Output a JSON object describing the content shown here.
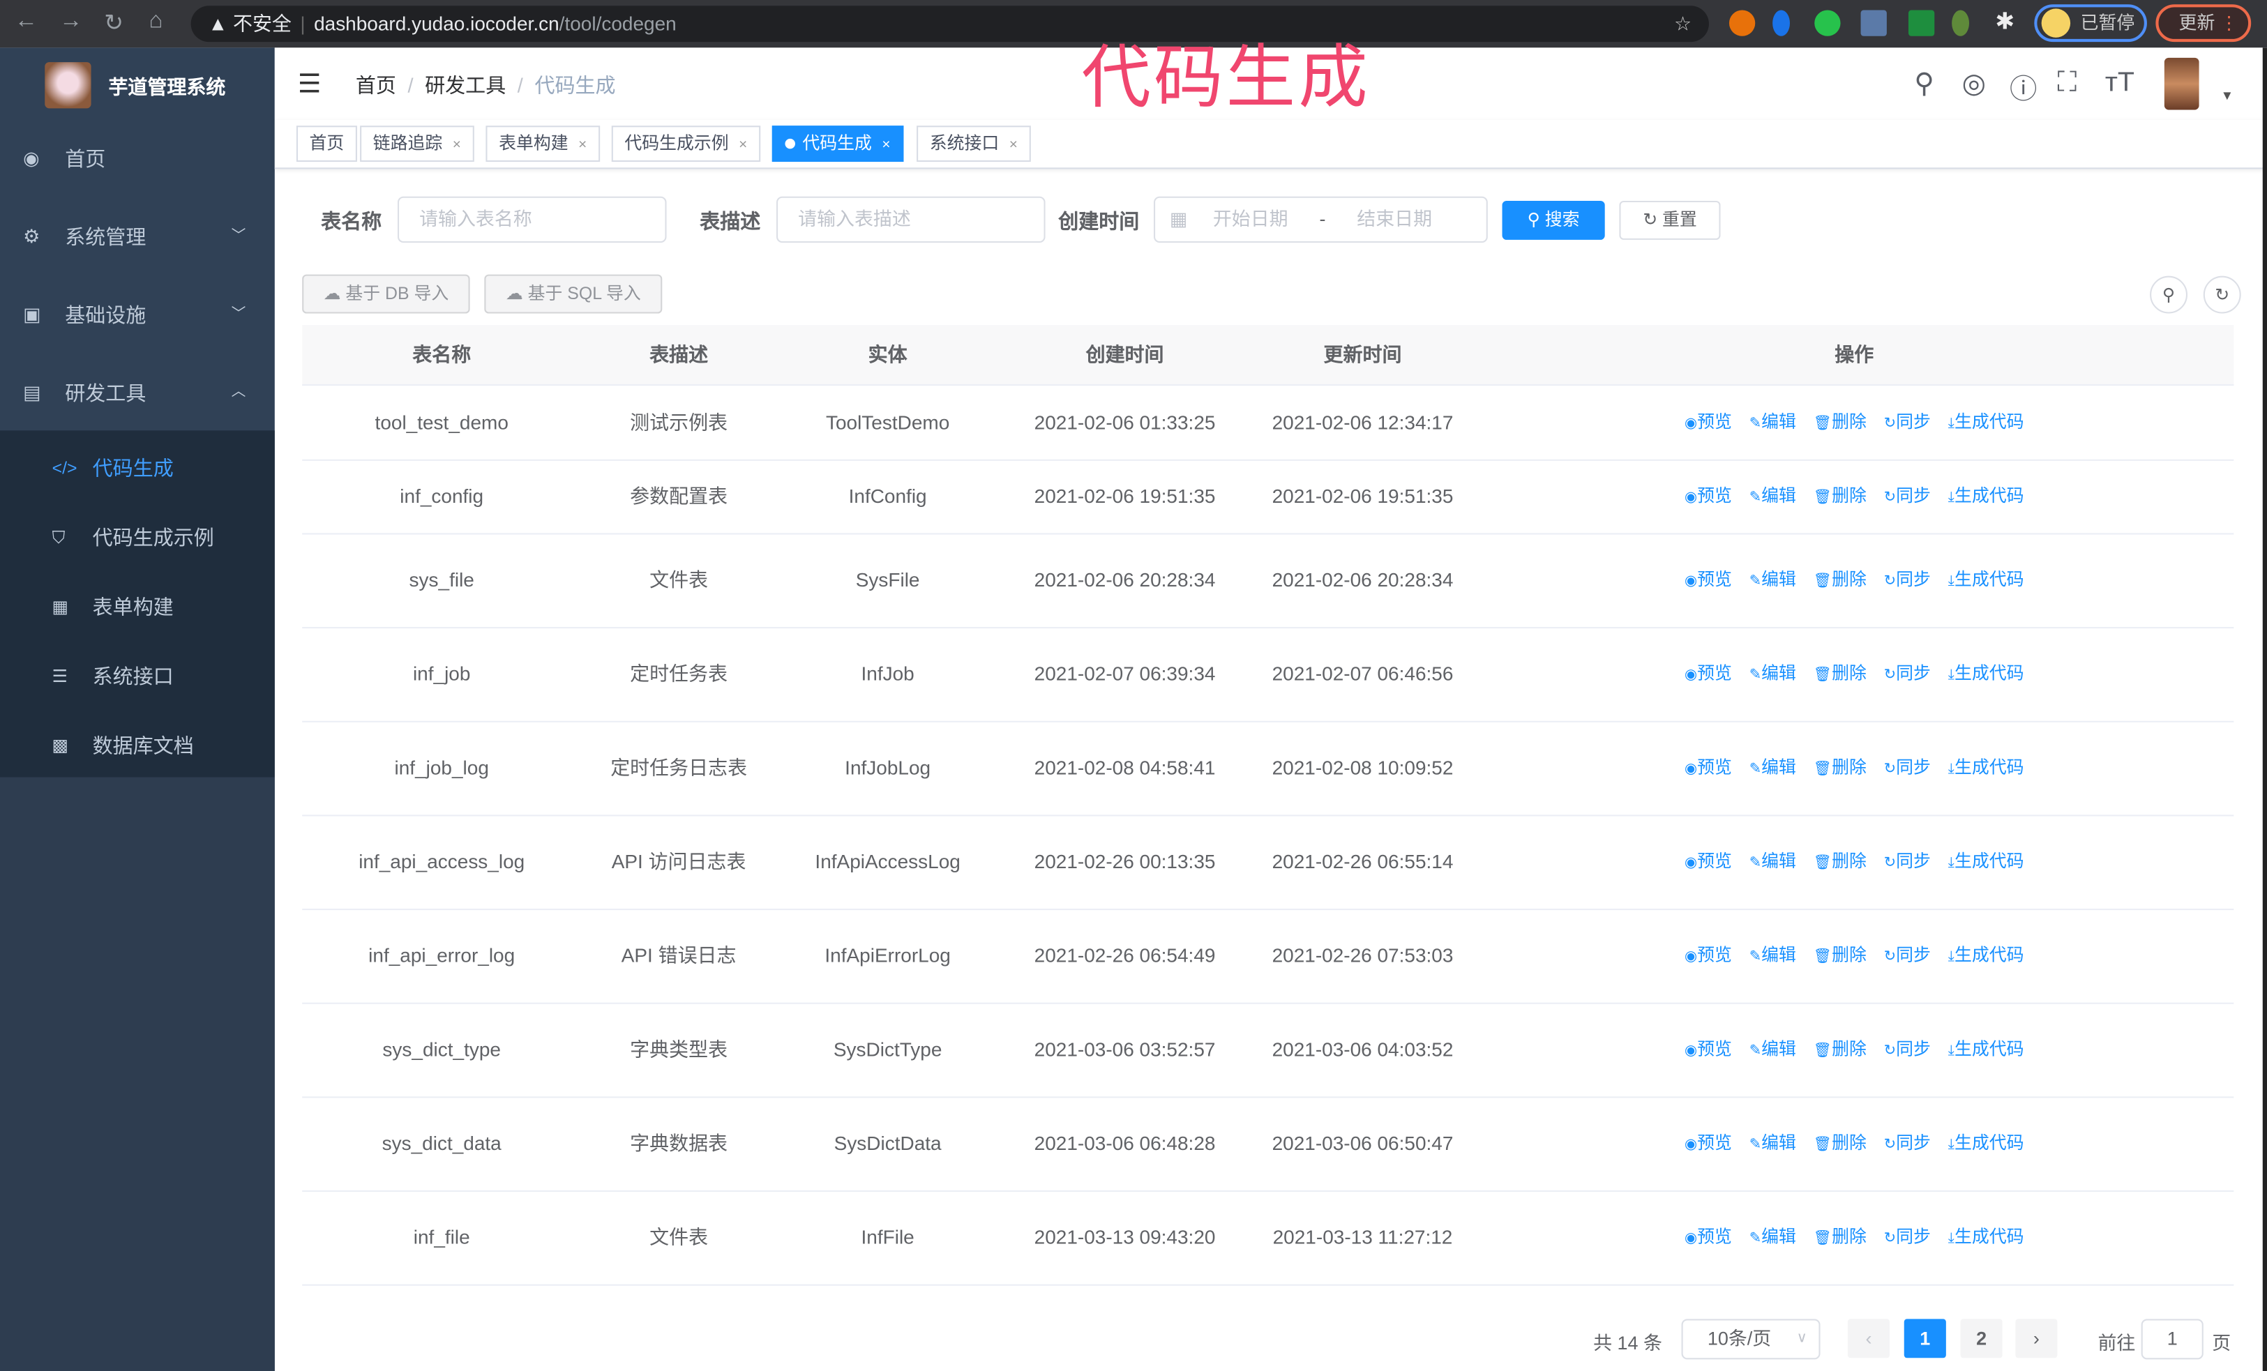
{
  "browser": {
    "insecure_label": "不安全",
    "url_host": "dashboard.yudao.iocoder.cn",
    "url_path": "/tool/codegen",
    "paused_label": "已暂停",
    "update_label": "更新"
  },
  "overlay_title": "代码生成",
  "sidebar": {
    "title": "芋道管理系统",
    "items": [
      {
        "label": "首页",
        "icon": "dashboard-icon"
      },
      {
        "label": "系统管理",
        "icon": "gear-icon"
      },
      {
        "label": "基础设施",
        "icon": "monitor-icon"
      },
      {
        "label": "研发工具",
        "icon": "toolbox-icon"
      }
    ],
    "subitems": [
      {
        "label": "代码生成",
        "icon": "code-icon",
        "active": true
      },
      {
        "label": "代码生成示例",
        "icon": "shield-icon"
      },
      {
        "label": "表单构建",
        "icon": "form-icon"
      },
      {
        "label": "系统接口",
        "icon": "sliders-icon"
      },
      {
        "label": "数据库文档",
        "icon": "table-icon"
      }
    ]
  },
  "breadcrumb": [
    "首页",
    "研发工具",
    "代码生成"
  ],
  "tags": [
    {
      "label": "首页"
    },
    {
      "label": "链路追踪"
    },
    {
      "label": "表单构建"
    },
    {
      "label": "代码生成示例"
    },
    {
      "label": "代码生成",
      "active": true
    },
    {
      "label": "系统接口"
    }
  ],
  "search": {
    "table_name_label": "表名称",
    "table_name_placeholder": "请输入表名称",
    "table_desc_label": "表描述",
    "table_desc_placeholder": "请输入表描述",
    "created_label": "创建时间",
    "start_placeholder": "开始日期",
    "range_sep": "-",
    "end_placeholder": "结束日期",
    "search_btn": "搜索",
    "reset_btn": "重置"
  },
  "toolbar": {
    "import_db": "基于 DB 导入",
    "import_sql": "基于 SQL 导入"
  },
  "table": {
    "headers": [
      "表名称",
      "表描述",
      "实体",
      "创建时间",
      "更新时间",
      "操作"
    ],
    "actions": [
      "预览",
      "编辑",
      "删除",
      "同步",
      "生成代码"
    ],
    "rows": [
      [
        "tool_test_demo",
        "测试示例表",
        "ToolTestDemo",
        "2021-02-06 01:33:25",
        "2021-02-06 12:34:17"
      ],
      [
        "inf_config",
        "参数配置表",
        "InfConfig",
        "2021-02-06 19:51:35",
        "2021-02-06 19:51:35"
      ],
      [
        "sys_file",
        "文件表",
        "SysFile",
        "2021-02-06 20:28:34",
        "2021-02-06 20:28:34"
      ],
      [
        "inf_job",
        "定时任务表",
        "InfJob",
        "2021-02-07 06:39:34",
        "2021-02-07 06:46:56"
      ],
      [
        "inf_job_log",
        "定时任务日志表",
        "InfJobLog",
        "2021-02-08 04:58:41",
        "2021-02-08 10:09:52"
      ],
      [
        "inf_api_access_log",
        "API 访问日志表",
        "InfApiAccessLog",
        "2021-02-26 00:13:35",
        "2021-02-26 06:55:14"
      ],
      [
        "inf_api_error_log",
        "API 错误日志",
        "InfApiErrorLog",
        "2021-02-26 06:54:49",
        "2021-02-26 07:53:03"
      ],
      [
        "sys_dict_type",
        "字典类型表",
        "SysDictType",
        "2021-03-06 03:52:57",
        "2021-03-06 04:03:52"
      ],
      [
        "sys_dict_data",
        "字典数据表",
        "SysDictData",
        "2021-03-06 06:48:28",
        "2021-03-06 06:50:47"
      ],
      [
        "inf_file",
        "文件表",
        "InfFile",
        "2021-03-13 09:43:20",
        "2021-03-13 11:27:12"
      ]
    ]
  },
  "pagination": {
    "total_label": "共 14 条",
    "page_size": "10条/页",
    "pages": [
      "1",
      "2"
    ],
    "current": "1",
    "goto_label": "前往",
    "goto_value": "1",
    "page_suffix": "页"
  },
  "colors": {
    "primary": "#1890ff",
    "sidebar": "#304156",
    "overlay": "#f0466e"
  }
}
